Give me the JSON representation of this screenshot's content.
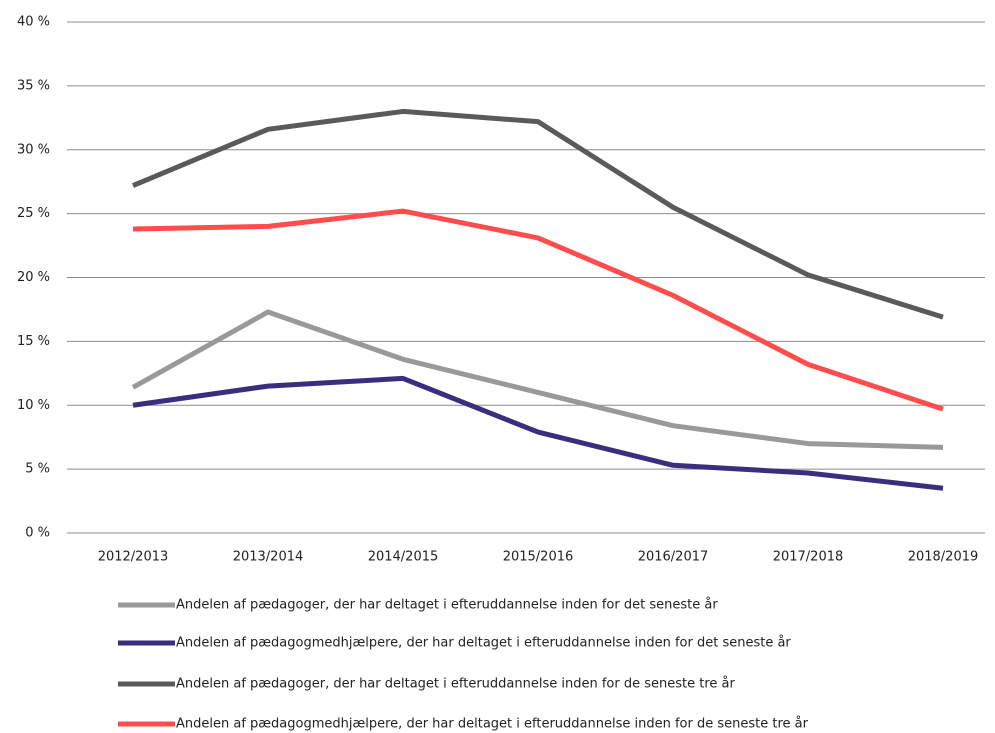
{
  "chart_data": {
    "type": "line",
    "categories": [
      "2012/2013",
      "2013/2014",
      "2014/2015",
      "2015/2016",
      "2016/2017",
      "2017/2018",
      "2018/2019"
    ],
    "series": [
      {
        "name": "Andelen af pædagoger, der har deltaget i efteruddannelse inden for det seneste år",
        "color": "#999999",
        "values": [
          11.4,
          17.3,
          13.6,
          11.0,
          8.4,
          7.0,
          6.7
        ]
      },
      {
        "name": "Andelen af pædagogmedhjælpere, der har deltaget i efteruddannelse inden for det seneste år",
        "color": "#3a2e7f",
        "values": [
          10.0,
          11.5,
          12.1,
          7.9,
          5.3,
          4.7,
          3.5
        ]
      },
      {
        "name": "Andelen af pædagoger, der har deltaget i efteruddannelse inden for de seneste tre år",
        "color": "#5a5a5a",
        "values": [
          27.2,
          31.6,
          33.0,
          32.2,
          25.5,
          20.2,
          16.9
        ]
      },
      {
        "name": "Andelen af pædagogmedhjælpere, der har deltaget i efteruddannelse inden for de seneste tre år",
        "color": "#ff4d4d",
        "values": [
          23.8,
          24.0,
          25.2,
          23.1,
          18.6,
          13.2,
          9.7
        ]
      }
    ],
    "ylim": [
      0,
      40
    ],
    "yticks": [
      {
        "value": 0,
        "label": "0 %"
      },
      {
        "value": 5,
        "label": "5 %"
      },
      {
        "value": 10,
        "label": "10 %"
      },
      {
        "value": 15,
        "label": "15 %"
      },
      {
        "value": 20,
        "label": "20 %"
      },
      {
        "value": 25,
        "label": "25 %"
      },
      {
        "value": 30,
        "label": "30 %"
      },
      {
        "value": 35,
        "label": "35 %"
      },
      {
        "value": 40,
        "label": "40 %"
      }
    ],
    "grid": true
  }
}
